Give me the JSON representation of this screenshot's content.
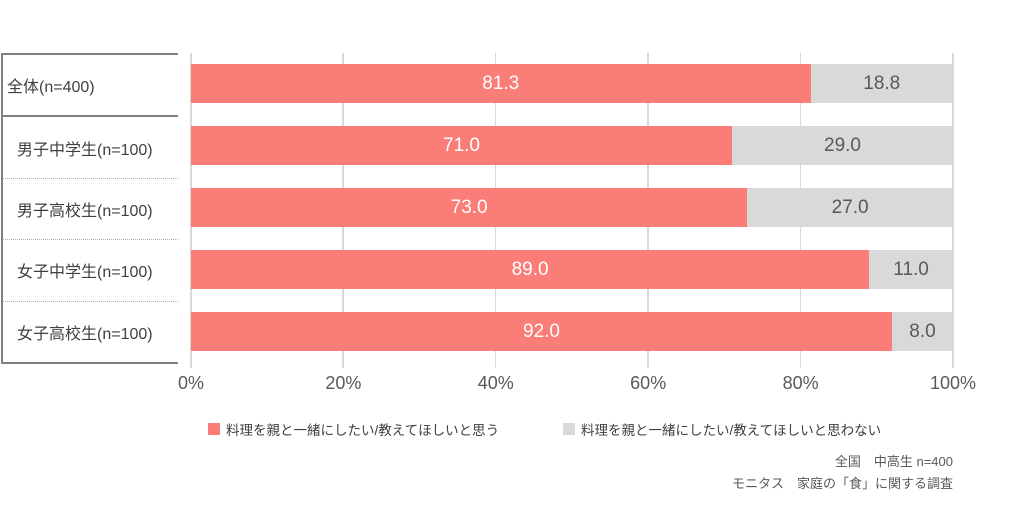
{
  "chart_data": {
    "type": "bar",
    "orientation": "horizontal",
    "stacked": true,
    "categories": [
      "全体(n=400)",
      "男子中学生(n=100)",
      "男子高校生(n=100)",
      "女子中学生(n=100)",
      "女子高校生(n=100)"
    ],
    "series": [
      {
        "name": "料理を親と一緒にしたい/教えてほしいと思う",
        "color": "#FA7D78",
        "values": [
          81.3,
          71.0,
          73.0,
          89.0,
          92.0
        ],
        "value_labels": [
          "81.3",
          "71.0",
          "73.0",
          "89.0",
          "92.0"
        ],
        "label_color": "#FFFFFF"
      },
      {
        "name": "料理を親と一緒にしたい/教えてほしいと思わない",
        "color": "#D9D9D9",
        "values": [
          18.8,
          29.0,
          27.0,
          11.0,
          8.0
        ],
        "value_labels": [
          "18.8",
          "29.0",
          "27.0",
          "11.0",
          "8.0"
        ],
        "label_color": "#595959"
      }
    ],
    "x_ticks": [
      "0%",
      "20%",
      "40%",
      "60%",
      "80%",
      "100%"
    ],
    "xlim": [
      0,
      100
    ],
    "grid": true,
    "gridline_color": "#D9D9D9",
    "legend_position": "bottom"
  },
  "footer": {
    "line1": "全国　中高生 n=400",
    "line2": "モニタス　家庭の「食」に関する調査"
  }
}
